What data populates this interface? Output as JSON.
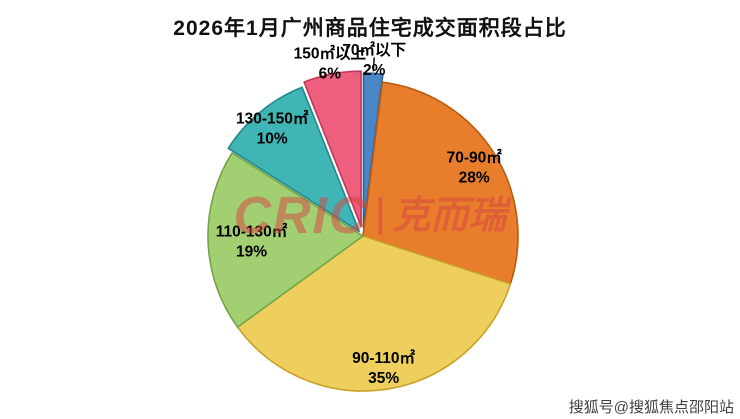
{
  "title": "2026年1月广州商品住宅成交面积段占比",
  "watermark": {
    "latin": "CRIC",
    "cjk": "克而瑞",
    "color": "#d84444"
  },
  "footer": "搜狐号@搜狐焦点邵阳站",
  "chart_data": {
    "type": "pie",
    "title": "2026年1月广州商品住宅成交面积段占比",
    "categories": [
      "70㎡以下",
      "70-90㎡",
      "90-110㎡",
      "110-130㎡",
      "130-150㎡",
      "150㎡以上"
    ],
    "values": [
      2,
      28,
      35,
      19,
      10,
      6
    ],
    "unit": "%",
    "colors": [
      "#4a86c6",
      "#e87d2b",
      "#eecf5e",
      "#a2cf72",
      "#3fb5b5",
      "#ee5f7e"
    ],
    "border_colors": [
      "#2d5f96",
      "#b95c10",
      "#c9a128",
      "#74a544",
      "#238a8a",
      "#c23757"
    ],
    "start_angle": -90,
    "direction": "clockwise",
    "legend": "none",
    "labels_on_slices": true,
    "background": "#ffffff"
  }
}
